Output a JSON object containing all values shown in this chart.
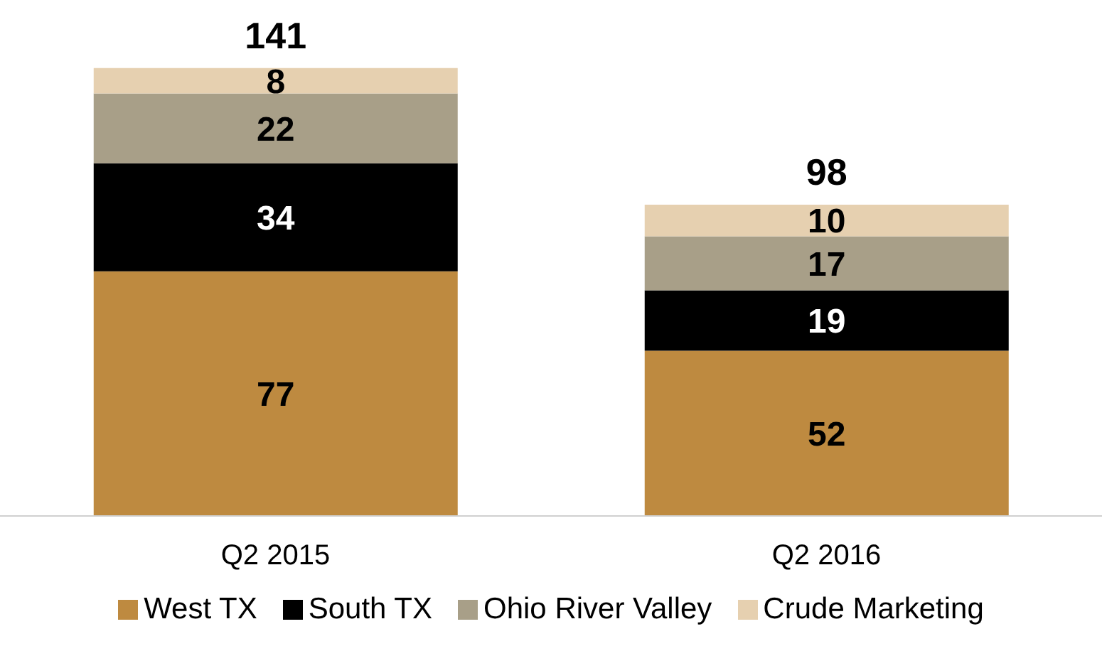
{
  "chart_data": {
    "type": "bar",
    "stacked": true,
    "categories": [
      "Q2 2015",
      "Q2 2016"
    ],
    "series": [
      {
        "name": "West TX",
        "color": "#be8a40",
        "values": [
          77,
          52
        ]
      },
      {
        "name": "South TX",
        "color": "#000000",
        "values": [
          34,
          19
        ]
      },
      {
        "name": "Ohio River Valley",
        "color": "#a89f88",
        "values": [
          22,
          17
        ]
      },
      {
        "name": "Crude Marketing",
        "color": "#e6d0b0",
        "values": [
          8,
          10
        ]
      }
    ],
    "totals": [
      "141",
      "98"
    ],
    "data_labels": true,
    "legend": "bottom",
    "grid": false
  }
}
